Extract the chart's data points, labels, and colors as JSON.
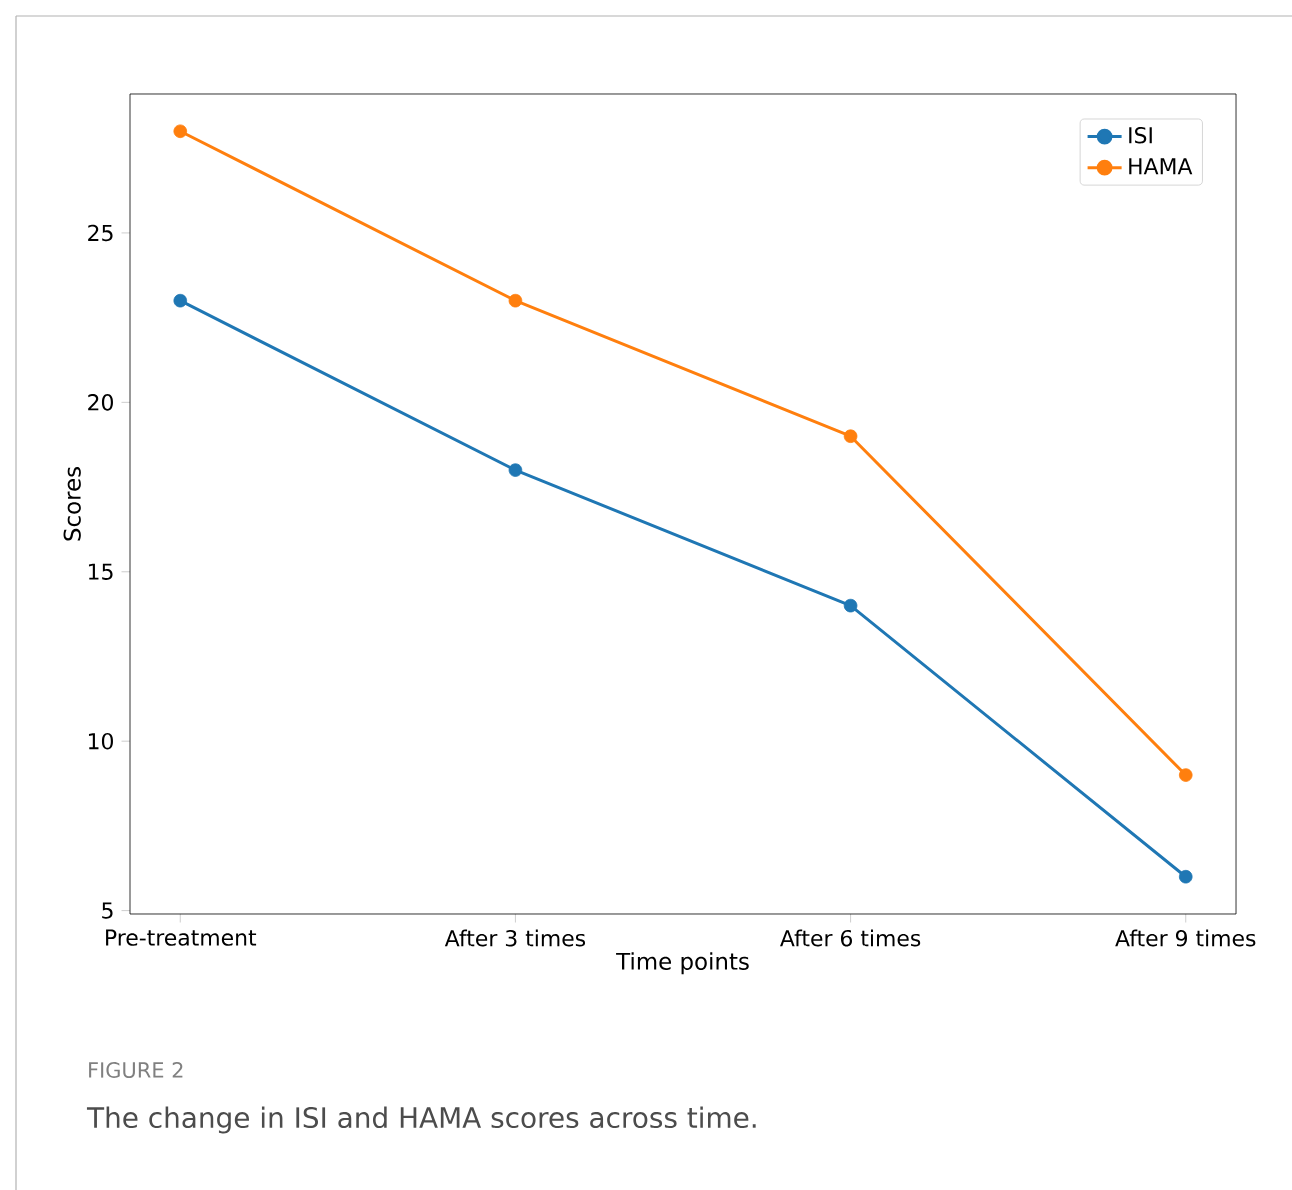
{
  "chart_data": {
    "type": "line",
    "xlabel": "Time points",
    "ylabel": "Scores",
    "categories": [
      "Pre-treatment",
      "After 3 times",
      "After 6 times",
      "After 9 times"
    ],
    "series": [
      {
        "name": "ISI",
        "color": "#1f77b4",
        "values": [
          23,
          18,
          14,
          6
        ]
      },
      {
        "name": "HAMA",
        "color": "#ff7f0e",
        "values": [
          28,
          23,
          19,
          9
        ]
      }
    ],
    "ylim": [
      4.9,
      29.1
    ],
    "yticks": [
      5,
      10,
      15,
      20,
      25
    ],
    "marker": "circle",
    "legend": "top right",
    "annotations": [
      "FIGURE 2",
      "The change in ISI and HAMA scores across time."
    ]
  }
}
